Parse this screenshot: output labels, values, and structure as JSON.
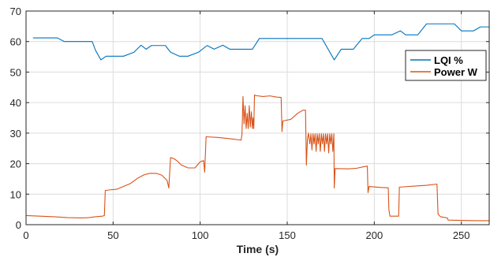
{
  "chart_data": {
    "type": "line",
    "xlabel": "Time (s)",
    "ylabel": "",
    "xlim": [
      0,
      266
    ],
    "ylim": [
      0,
      70
    ],
    "xticks": [
      0,
      50,
      100,
      150,
      200,
      250
    ],
    "yticks": [
      0,
      10,
      20,
      30,
      40,
      50,
      60,
      70
    ],
    "grid": true,
    "legend_position": "right",
    "series": [
      {
        "name": "LQI %",
        "color": "#0072BD",
        "points": [
          [
            4,
            61.2
          ],
          [
            14,
            61.2
          ],
          [
            18,
            61.2
          ],
          [
            22,
            60
          ],
          [
            38,
            60
          ],
          [
            40,
            57
          ],
          [
            43,
            54
          ],
          [
            46,
            55.2
          ],
          [
            52,
            55.2
          ],
          [
            56,
            55.2
          ],
          [
            62,
            56.5
          ],
          [
            66,
            58.8
          ],
          [
            69,
            57.5
          ],
          [
            72,
            58.7
          ],
          [
            77,
            58.7
          ],
          [
            80,
            58.7
          ],
          [
            83,
            56.5
          ],
          [
            88,
            55.2
          ],
          [
            93,
            55.2
          ],
          [
            99,
            56.5
          ],
          [
            104,
            58.7
          ],
          [
            108,
            57.5
          ],
          [
            113,
            58.8
          ],
          [
            117,
            57.5
          ],
          [
            130,
            57.5
          ],
          [
            134,
            61
          ],
          [
            145,
            61
          ],
          [
            160,
            61
          ],
          [
            170,
            61
          ],
          [
            177,
            54
          ],
          [
            181,
            57.5
          ],
          [
            188,
            57.5
          ],
          [
            193,
            61
          ],
          [
            197,
            61
          ],
          [
            200,
            62.2
          ],
          [
            210,
            62.2
          ],
          [
            215,
            63.5
          ],
          [
            218,
            62.2
          ],
          [
            225,
            62.2
          ],
          [
            230,
            65.8
          ],
          [
            246,
            65.8
          ],
          [
            250,
            63.5
          ],
          [
            257,
            63.5
          ],
          [
            261,
            64.8
          ],
          [
            266,
            64.8
          ]
        ]
      },
      {
        "name": "Power W",
        "color": "#D95319",
        "points": [
          [
            0,
            3
          ],
          [
            8,
            2.8
          ],
          [
            16,
            2.6
          ],
          [
            24,
            2.3
          ],
          [
            32,
            2.2
          ],
          [
            36,
            2.3
          ],
          [
            40,
            2.6
          ],
          [
            44,
            2.8
          ],
          [
            45,
            3
          ],
          [
            45.5,
            11.2
          ],
          [
            48,
            11.4
          ],
          [
            52,
            11.6
          ],
          [
            55,
            12.3
          ],
          [
            60,
            13.5
          ],
          [
            64,
            15.2
          ],
          [
            68,
            16.4
          ],
          [
            71,
            16.8
          ],
          [
            75,
            16.8
          ],
          [
            78,
            16.2
          ],
          [
            81,
            14.5
          ],
          [
            82,
            12
          ],
          [
            83,
            22
          ],
          [
            85,
            21.6
          ],
          [
            87,
            20.8
          ],
          [
            89,
            19.6
          ],
          [
            93,
            18.6
          ],
          [
            97,
            18.6
          ],
          [
            100,
            20.6
          ],
          [
            102,
            21
          ],
          [
            102.6,
            17.2
          ],
          [
            103.4,
            28.8
          ],
          [
            110,
            28.6
          ],
          [
            118,
            28.1
          ],
          [
            123.5,
            27.7
          ],
          [
            124,
            29.5
          ],
          [
            124.6,
            42
          ],
          [
            125.2,
            33
          ],
          [
            125.8,
            39
          ],
          [
            126.4,
            31.5
          ],
          [
            127,
            36.5
          ],
          [
            127.6,
            31.5
          ],
          [
            128.2,
            39
          ],
          [
            128.8,
            32
          ],
          [
            129.4,
            37
          ],
          [
            130,
            31.5
          ],
          [
            130.4,
            35
          ],
          [
            130.8,
            31.5
          ],
          [
            131.2,
            42.5
          ],
          [
            132,
            42.3
          ],
          [
            136,
            42
          ],
          [
            140,
            42.2
          ],
          [
            144,
            41.8
          ],
          [
            146.5,
            41.7
          ],
          [
            147,
            30.5
          ],
          [
            147.5,
            34
          ],
          [
            152,
            34.5
          ],
          [
            156,
            36.5
          ],
          [
            159,
            37.5
          ],
          [
            160.5,
            37.5
          ],
          [
            161,
            19.5
          ],
          [
            161.6,
            28
          ],
          [
            162.2,
            30
          ],
          [
            163,
            26.5
          ],
          [
            163.6,
            29.8
          ],
          [
            164.2,
            24.5
          ],
          [
            164.8,
            29.8
          ],
          [
            165.4,
            26.5
          ],
          [
            166,
            29.8
          ],
          [
            166.6,
            24
          ],
          [
            167.2,
            29.8
          ],
          [
            167.8,
            26.5
          ],
          [
            168.4,
            29.8
          ],
          [
            169,
            24
          ],
          [
            169.6,
            29.8
          ],
          [
            170.2,
            26.5
          ],
          [
            170.8,
            29.8
          ],
          [
            171.4,
            24
          ],
          [
            172,
            29.8
          ],
          [
            172.6,
            26.5
          ],
          [
            173.2,
            29.8
          ],
          [
            173.8,
            23.5
          ],
          [
            174.4,
            29.8
          ],
          [
            175,
            26.5
          ],
          [
            175.6,
            29.8
          ],
          [
            176.2,
            24
          ],
          [
            176.8,
            29.8
          ],
          [
            177,
            12
          ],
          [
            177.5,
            18.4
          ],
          [
            185,
            18.3
          ],
          [
            190,
            18.5
          ],
          [
            194,
            19
          ],
          [
            196,
            19.2
          ],
          [
            196.4,
            10.5
          ],
          [
            197,
            12.5
          ],
          [
            204,
            12.2
          ],
          [
            208,
            12.1
          ],
          [
            208.4,
            4.8
          ],
          [
            209,
            2.8
          ],
          [
            214,
            2.8
          ],
          [
            214.4,
            12.3
          ],
          [
            222,
            12.6
          ],
          [
            230,
            12.9
          ],
          [
            236,
            13.3
          ],
          [
            236.6,
            3.5
          ],
          [
            238,
            2.6
          ],
          [
            240,
            2.4
          ],
          [
            242,
            2.2
          ],
          [
            242.4,
            1.5
          ],
          [
            250,
            1.4
          ],
          [
            258,
            1.3
          ],
          [
            266,
            1.3
          ]
        ]
      }
    ]
  }
}
